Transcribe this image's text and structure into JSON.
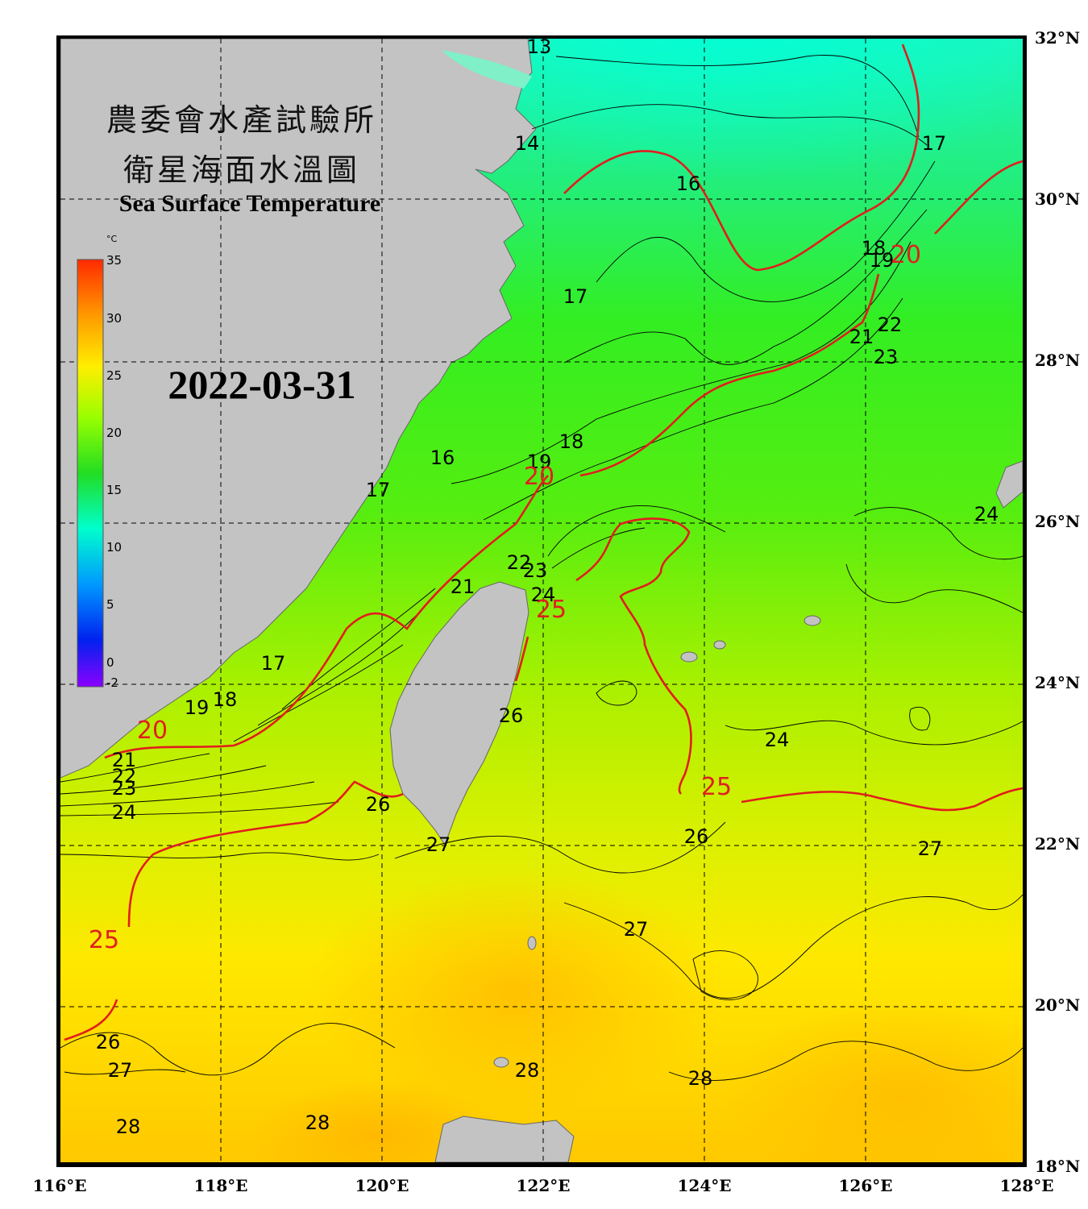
{
  "title": {
    "zh_line1": "農委會水產試驗所",
    "zh_line2": "衛星海面水溫圖",
    "en": "Sea Surface Temperature"
  },
  "date": "2022-03-31",
  "colorbar": {
    "unit": "°C",
    "ticks": [
      "35",
      "30",
      "25",
      "20",
      "15",
      "10",
      "5",
      "0",
      "-2"
    ],
    "colors": [
      "#ff2a00",
      "#ff9900",
      "#ffee00",
      "#99ff00",
      "#22dd22",
      "#00ffcc",
      "#0099ff",
      "#0022ee",
      "#8a00ff"
    ]
  },
  "axes": {
    "lon_labels": [
      "116°E",
      "118°E",
      "120°E",
      "122°E",
      "124°E",
      "126°E",
      "128°E"
    ],
    "lat_labels": [
      "32°N",
      "30°N",
      "28°N",
      "26°N",
      "24°N",
      "22°N",
      "20°N",
      "18°N"
    ]
  },
  "isotherm_labels": [
    {
      "text": "13",
      "lon": 121.95,
      "lat": 31.8
    },
    {
      "text": "14",
      "lon": 121.8,
      "lat": 30.6
    },
    {
      "text": "16",
      "lon": 123.8,
      "lat": 30.1
    },
    {
      "text": "17",
      "lon": 126.85,
      "lat": 30.6
    },
    {
      "text": "18",
      "lon": 126.1,
      "lat": 29.3
    },
    {
      "text": "19",
      "lon": 126.2,
      "lat": 29.15
    },
    {
      "text": "20",
      "lon": 126.5,
      "lat": 29.2,
      "red": true
    },
    {
      "text": "17",
      "lon": 122.4,
      "lat": 28.7
    },
    {
      "text": "21",
      "lon": 125.95,
      "lat": 28.2
    },
    {
      "text": "22",
      "lon": 126.3,
      "lat": 28.35
    },
    {
      "text": "23",
      "lon": 126.25,
      "lat": 27.95
    },
    {
      "text": "16",
      "lon": 120.75,
      "lat": 26.7
    },
    {
      "text": "19",
      "lon": 121.95,
      "lat": 26.65
    },
    {
      "text": "18",
      "lon": 122.35,
      "lat": 26.9
    },
    {
      "text": "20",
      "lon": 121.95,
      "lat": 26.45,
      "red": true
    },
    {
      "text": "17",
      "lon": 119.95,
      "lat": 26.3
    },
    {
      "text": "24",
      "lon": 127.5,
      "lat": 26.0
    },
    {
      "text": "22",
      "lon": 121.7,
      "lat": 25.4
    },
    {
      "text": "23",
      "lon": 121.9,
      "lat": 25.3
    },
    {
      "text": "21",
      "lon": 121.0,
      "lat": 25.1
    },
    {
      "text": "24",
      "lon": 122.0,
      "lat": 25.0
    },
    {
      "text": "25",
      "lon": 122.1,
      "lat": 24.8,
      "red": true
    },
    {
      "text": "17",
      "lon": 118.65,
      "lat": 24.15
    },
    {
      "text": "19",
      "lon": 117.7,
      "lat": 23.6
    },
    {
      "text": "18",
      "lon": 118.05,
      "lat": 23.7
    },
    {
      "text": "20",
      "lon": 117.15,
      "lat": 23.3,
      "red": true
    },
    {
      "text": "26",
      "lon": 121.6,
      "lat": 23.5
    },
    {
      "text": "24",
      "lon": 124.9,
      "lat": 23.2
    },
    {
      "text": "21",
      "lon": 116.8,
      "lat": 22.95
    },
    {
      "text": "22",
      "lon": 116.8,
      "lat": 22.75
    },
    {
      "text": "23",
      "lon": 116.8,
      "lat": 22.6
    },
    {
      "text": "24",
      "lon": 116.8,
      "lat": 22.3
    },
    {
      "text": "25",
      "lon": 124.15,
      "lat": 22.6,
      "red": true
    },
    {
      "text": "26",
      "lon": 119.95,
      "lat": 22.4
    },
    {
      "text": "26",
      "lon": 123.9,
      "lat": 22.0
    },
    {
      "text": "27",
      "lon": 126.8,
      "lat": 21.85
    },
    {
      "text": "27",
      "lon": 120.7,
      "lat": 21.9
    },
    {
      "text": "27",
      "lon": 123.15,
      "lat": 20.85
    },
    {
      "text": "25",
      "lon": 116.55,
      "lat": 20.7,
      "red": true
    },
    {
      "text": "26",
      "lon": 116.6,
      "lat": 19.45
    },
    {
      "text": "27",
      "lon": 116.75,
      "lat": 19.1
    },
    {
      "text": "28",
      "lon": 121.8,
      "lat": 19.1
    },
    {
      "text": "28",
      "lon": 123.95,
      "lat": 19.0
    },
    {
      "text": "28",
      "lon": 116.85,
      "lat": 18.4
    },
    {
      "text": "28",
      "lon": 119.2,
      "lat": 18.45
    }
  ]
}
